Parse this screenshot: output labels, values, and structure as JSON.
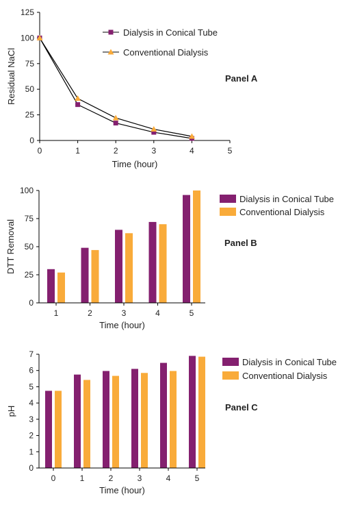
{
  "colors": {
    "conical": "#84206f",
    "conventional": "#f9ab3a",
    "axis": "#000000",
    "text": "#222222"
  },
  "chart_data": [
    {
      "type": "line",
      "panel_label": "Panel A",
      "xlabel": "Time (hour)",
      "ylabel": "Residual NaCl",
      "x": [
        0,
        1,
        2,
        3,
        4
      ],
      "xlim": [
        0,
        5
      ],
      "ylim": [
        0,
        125
      ],
      "xticks": [
        "0",
        "1",
        "2",
        "3",
        "4",
        "5"
      ],
      "yticks": [
        "0",
        "25",
        "50",
        "75",
        "100",
        "125"
      ],
      "legend_position": "top-center",
      "series": [
        {
          "name": "Dialysis in Conical Tube",
          "values": [
            100,
            35,
            17,
            8,
            2
          ],
          "marker": "square",
          "color": "#84206f"
        },
        {
          "name": "Conventional Dialysis",
          "values": [
            100,
            41,
            22,
            11,
            4
          ],
          "marker": "triangle",
          "color": "#f9ab3a"
        }
      ]
    },
    {
      "type": "bar",
      "panel_label": "Panel B",
      "xlabel": "Time (hour)",
      "ylabel": "DTT Removal",
      "categories": [
        "1",
        "2",
        "3",
        "4",
        "5"
      ],
      "ylim": [
        0,
        100
      ],
      "yticks": [
        "0",
        "25",
        "50",
        "75",
        "100"
      ],
      "legend_position": "right",
      "series": [
        {
          "name": "Dialysis in Conical Tube",
          "values": [
            30,
            49,
            65,
            72,
            96
          ],
          "color": "#84206f"
        },
        {
          "name": "Conventional Dialysis",
          "values": [
            27,
            47,
            62,
            70,
            100
          ],
          "color": "#f9ab3a"
        }
      ]
    },
    {
      "type": "bar",
      "panel_label": "Panel C",
      "xlabel": "Time (hour)",
      "ylabel": "pH",
      "categories": [
        "0",
        "1",
        "2",
        "3",
        "4",
        "5"
      ],
      "ylim": [
        0,
        7
      ],
      "yticks": [
        "0",
        "1",
        "2",
        "3",
        "4",
        "5",
        "6",
        "7"
      ],
      "legend_position": "right",
      "series": [
        {
          "name": "Dialysis in Conical Tube",
          "values": [
            4.75,
            5.75,
            5.97,
            6.1,
            6.47,
            6.9
          ],
          "color": "#84206f"
        },
        {
          "name": "Conventional Dialysis",
          "values": [
            4.75,
            5.42,
            5.67,
            5.85,
            5.97,
            6.85
          ],
          "color": "#f9ab3a"
        }
      ]
    }
  ]
}
